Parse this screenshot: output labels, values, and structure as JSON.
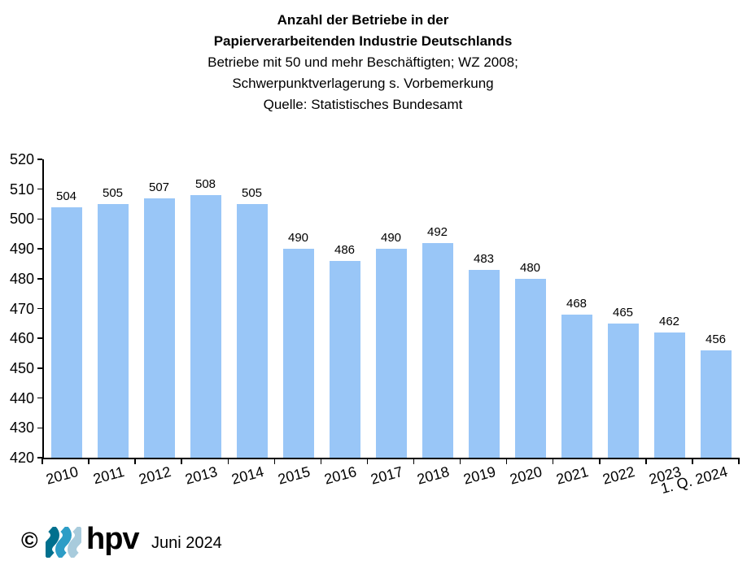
{
  "header": {
    "title_line1": "Anzahl der Betriebe in der",
    "title_line2": "Papierverarbeitenden Industrie Deutschlands",
    "subtitle_line1": "Betriebe mit 50 und mehr Beschäftigten; WZ 2008;",
    "subtitle_line2": "Schwerpunktverlagerung s. Vorbemerkung",
    "subtitle_line3": "Quelle: Statistisches Bundesamt"
  },
  "chart_data": {
    "type": "bar",
    "title": "Anzahl der Betriebe in der Papierverarbeitenden Industrie Deutschlands",
    "subtitle": "Betriebe mit 50 und mehr Beschäftigten; WZ 2008; Schwerpunktverlagerung s. Vorbemerkung; Quelle: Statistisches Bundesamt",
    "categories": [
      "2010",
      "2011",
      "2012",
      "2013",
      "2014",
      "2015",
      "2016",
      "2017",
      "2018",
      "2019",
      "2020",
      "2021",
      "2022",
      "2023",
      "1. Q. 2024"
    ],
    "values": [
      504,
      505,
      507,
      508,
      505,
      490,
      486,
      490,
      492,
      483,
      480,
      468,
      465,
      462,
      456
    ],
    "xlabel": "",
    "ylabel": "",
    "ylim": [
      420,
      520
    ],
    "yticks": [
      420,
      430,
      440,
      450,
      460,
      470,
      480,
      490,
      500,
      510,
      520
    ],
    "grid": false,
    "legend": "none",
    "value_labels": true,
    "bar_color": "#99C6F7"
  },
  "footer": {
    "copyright_symbol": "©",
    "logo_text": "hpv",
    "logo_wave_colors": [
      "#00708E",
      "#2D9DC6",
      "#A8CBDC"
    ],
    "date_label": "Juni 2024"
  }
}
